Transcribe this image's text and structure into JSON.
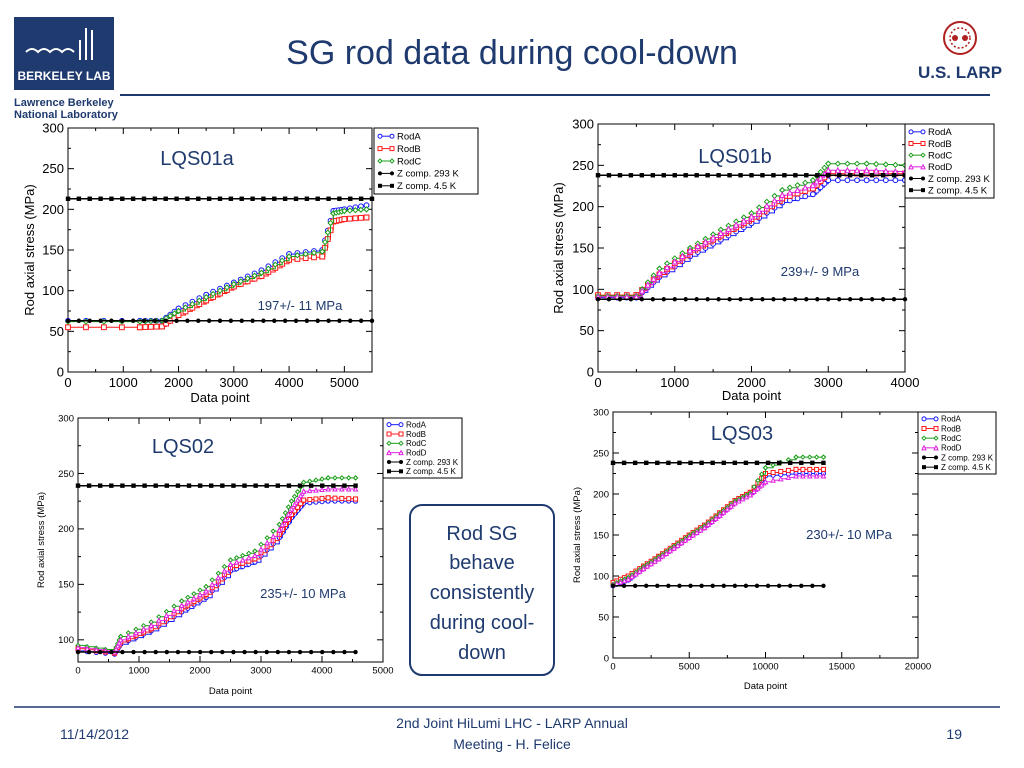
{
  "header": {
    "logo_text": "BERKELEY LAB",
    "lab_name_line1": "Lawrence Berkeley",
    "lab_name_line2": "National Laboratory",
    "title": "SG rod data during cool-down",
    "larp_logo_text": "U.S. LARP"
  },
  "callout": {
    "lines": [
      "Rod SG",
      "behave",
      "consistently",
      "during cool-",
      "down"
    ]
  },
  "footer": {
    "date": "11/14/2012",
    "meeting_line1": "2nd Joint HiLumi LHC - LARP Annual",
    "meeting_line2": "Meeting - H. Felice",
    "page_number": "19"
  },
  "colors": {
    "title": "#1f3a6e",
    "rule": "#1f3a6e",
    "callout_border": "#1f3a6e",
    "RodA": "#1a1aff",
    "RodB": "#ff1a1a",
    "RodC": "#1a9e1a",
    "RodD": "#e020e0",
    "zcomp": "#000000"
  },
  "chart_data": [
    {
      "type": "line",
      "title": "LQS01a",
      "annotation": "197+/- 11 MPa",
      "xlabel": "Data point",
      "ylabel": "Rod axial stress (MPa)",
      "xlim": [
        0,
        5500
      ],
      "ylim": [
        0,
        300
      ],
      "xticks": [
        "0",
        "1000",
        "2000",
        "3000",
        "4000",
        "5000"
      ],
      "yticks": [
        "0",
        "50",
        "100",
        "150",
        "200",
        "250",
        "300"
      ],
      "legend": [
        "RodA",
        "RodB",
        "RodC",
        "Z comp. 293 K",
        "Z comp. 4.5 K"
      ],
      "series": [
        {
          "name": "RodA",
          "x": [
            0,
            1300,
            1700,
            2000,
            2500,
            3000,
            3500,
            4000,
            4600,
            4800,
            5000,
            5400
          ],
          "y": [
            63,
            63,
            63,
            78,
            95,
            110,
            125,
            145,
            150,
            198,
            200,
            205
          ]
        },
        {
          "name": "RodB",
          "x": [
            0,
            1300,
            1700,
            2000,
            2500,
            3000,
            3500,
            4000,
            4600,
            4800,
            5000,
            5400
          ],
          "y": [
            55,
            55,
            56,
            70,
            88,
            105,
            118,
            138,
            142,
            185,
            188,
            190
          ]
        },
        {
          "name": "RodC",
          "x": [
            0,
            1300,
            1700,
            2000,
            2500,
            3000,
            3500,
            4000,
            4600,
            4800,
            5000,
            5400
          ],
          "y": [
            62,
            62,
            63,
            75,
            92,
            108,
            122,
            142,
            148,
            195,
            198,
            200
          ]
        },
        {
          "name": "Z comp. 293 K",
          "x": [
            0,
            5500
          ],
          "y": [
            63,
            63
          ]
        },
        {
          "name": "Z comp. 4.5 K",
          "x": [
            0,
            5500
          ],
          "y": [
            213,
            213
          ]
        }
      ]
    },
    {
      "type": "line",
      "title": "LQS01b",
      "annotation": "239+/- 9 MPa",
      "xlabel": "Data point",
      "ylabel": "Rod axial stress (MPa)",
      "xlim": [
        0,
        4000
      ],
      "ylim": [
        0,
        300
      ],
      "xticks": [
        "0",
        "1000",
        "2000",
        "3000",
        "4000"
      ],
      "yticks": [
        "0",
        "50",
        "100",
        "150",
        "200",
        "250",
        "300"
      ],
      "legend": [
        "RodA",
        "RodB",
        "RodC",
        "RodD",
        "Z comp. 293 K",
        "Z comp. 4.5 K"
      ],
      "series": [
        {
          "name": "RodA",
          "x": [
            0,
            500,
            800,
            1200,
            1600,
            2000,
            2400,
            2800,
            3000,
            3500,
            4000
          ],
          "y": [
            90,
            90,
            115,
            140,
            160,
            180,
            205,
            215,
            232,
            232,
            232
          ]
        },
        {
          "name": "RodB",
          "x": [
            0,
            500,
            800,
            1200,
            1600,
            2000,
            2400,
            2800,
            3000,
            3500,
            4000
          ],
          "y": [
            93,
            93,
            118,
            145,
            165,
            185,
            210,
            222,
            240,
            240,
            240
          ]
        },
        {
          "name": "RodC",
          "x": [
            0,
            500,
            800,
            1200,
            1600,
            2000,
            2400,
            2800,
            3000,
            3500,
            4000
          ],
          "y": [
            92,
            92,
            125,
            150,
            172,
            192,
            220,
            232,
            252,
            252,
            250
          ]
        },
        {
          "name": "RodD",
          "x": [
            0,
            500,
            800,
            1200,
            1600,
            2000,
            2400,
            2800,
            3000,
            3500,
            4000
          ],
          "y": [
            91,
            91,
            120,
            147,
            168,
            188,
            214,
            226,
            244,
            244,
            242
          ]
        },
        {
          "name": "Z comp. 293 K",
          "x": [
            0,
            4000
          ],
          "y": [
            88,
            88
          ]
        },
        {
          "name": "Z comp. 4.5 K",
          "x": [
            0,
            4000
          ],
          "y": [
            238,
            238
          ]
        }
      ]
    },
    {
      "type": "line",
      "title": "LQS02",
      "annotation": "235+/- 10 MPa",
      "xlabel": "Data point",
      "ylabel": "Rod axial stress (MPa)",
      "xlim": [
        0,
        5000
      ],
      "ylim": [
        80,
        300
      ],
      "xticks": [
        "0",
        "1000",
        "2000",
        "3000",
        "4000",
        "5000"
      ],
      "yticks": [
        "100",
        "150",
        "200",
        "250",
        "300"
      ],
      "legend": [
        "RodA",
        "RodB",
        "RodC",
        "RodD",
        "Z comp. 293 K",
        "Z comp. 4.5 K"
      ],
      "series": [
        {
          "name": "RodA",
          "x": [
            0,
            600,
            700,
            1200,
            1700,
            2100,
            2500,
            2900,
            3300,
            3500,
            3700,
            4100,
            4550
          ],
          "y": [
            90,
            87,
            96,
            108,
            125,
            138,
            162,
            170,
            192,
            210,
            223,
            225,
            225
          ]
        },
        {
          "name": "RodB",
          "x": [
            0,
            600,
            700,
            1200,
            1700,
            2100,
            2500,
            2900,
            3300,
            3500,
            3700,
            4100,
            4550
          ],
          "y": [
            92,
            88,
            98,
            110,
            128,
            141,
            165,
            173,
            195,
            213,
            226,
            228,
            227
          ]
        },
        {
          "name": "RodC",
          "x": [
            0,
            600,
            700,
            1200,
            1700,
            2100,
            2500,
            2900,
            3300,
            3500,
            3700,
            4100,
            4550
          ],
          "y": [
            95,
            90,
            103,
            116,
            135,
            148,
            172,
            180,
            204,
            225,
            242,
            246,
            246
          ]
        },
        {
          "name": "RodD",
          "x": [
            0,
            600,
            700,
            1200,
            1700,
            2100,
            2500,
            2900,
            3300,
            3500,
            3700,
            4100,
            4550
          ],
          "y": [
            93,
            89,
            100,
            113,
            131,
            144,
            168,
            176,
            199,
            218,
            234,
            236,
            236
          ]
        },
        {
          "name": "Z comp. 293 K",
          "x": [
            0,
            4550
          ],
          "y": [
            89,
            89
          ]
        },
        {
          "name": "Z comp. 4.5 K",
          "x": [
            0,
            4550
          ],
          "y": [
            239,
            239
          ]
        }
      ]
    },
    {
      "type": "line",
      "title": "LQS03",
      "annotation": "230+/- 10 MPa",
      "xlabel": "Data point",
      "ylabel": "Rod axial stress (MPa)",
      "xlim": [
        0,
        20000
      ],
      "ylim": [
        0,
        300
      ],
      "xticks": [
        "0",
        "5000",
        "10000",
        "15000",
        "20000"
      ],
      "yticks": [
        "0",
        "50",
        "100",
        "150",
        "200",
        "250",
        "300"
      ],
      "legend": [
        "RodA",
        "RodB",
        "RodC",
        "RodD",
        "Z comp. 293 K",
        "Z comp. 4.5 K"
      ],
      "series": [
        {
          "name": "RodA",
          "x": [
            0,
            1000,
            2000,
            3000,
            4000,
            5000,
            6000,
            7000,
            8000,
            9000,
            10000,
            12000,
            13800
          ],
          "y": [
            88,
            95,
            110,
            122,
            135,
            148,
            160,
            175,
            190,
            200,
            222,
            225,
            225
          ]
        },
        {
          "name": "RodB",
          "x": [
            0,
            1000,
            2000,
            3000,
            4000,
            5000,
            6000,
            7000,
            8000,
            9000,
            10000,
            12000,
            13800
          ],
          "y": [
            92,
            100,
            112,
            124,
            137,
            150,
            162,
            177,
            192,
            202,
            225,
            230,
            230
          ]
        },
        {
          "name": "RodC",
          "x": [
            0,
            1000,
            2000,
            3000,
            4000,
            5000,
            6000,
            7000,
            8000,
            9000,
            10000,
            12000,
            13800
          ],
          "y": [
            90,
            98,
            111,
            123,
            136,
            149,
            161,
            176,
            191,
            201,
            232,
            245,
            245
          ]
        },
        {
          "name": "RodD",
          "x": [
            0,
            1000,
            2000,
            3000,
            4000,
            5000,
            6000,
            7000,
            8000,
            9000,
            10000,
            12000,
            13800
          ],
          "y": [
            89,
            96,
            109,
            121,
            134,
            147,
            159,
            174,
            189,
            199,
            215,
            222,
            222
          ]
        },
        {
          "name": "Z comp. 293 K",
          "x": [
            0,
            13800
          ],
          "y": [
            88,
            88
          ]
        },
        {
          "name": "Z comp. 4.5 K",
          "x": [
            0,
            13800
          ],
          "y": [
            238,
            238
          ]
        }
      ]
    }
  ]
}
